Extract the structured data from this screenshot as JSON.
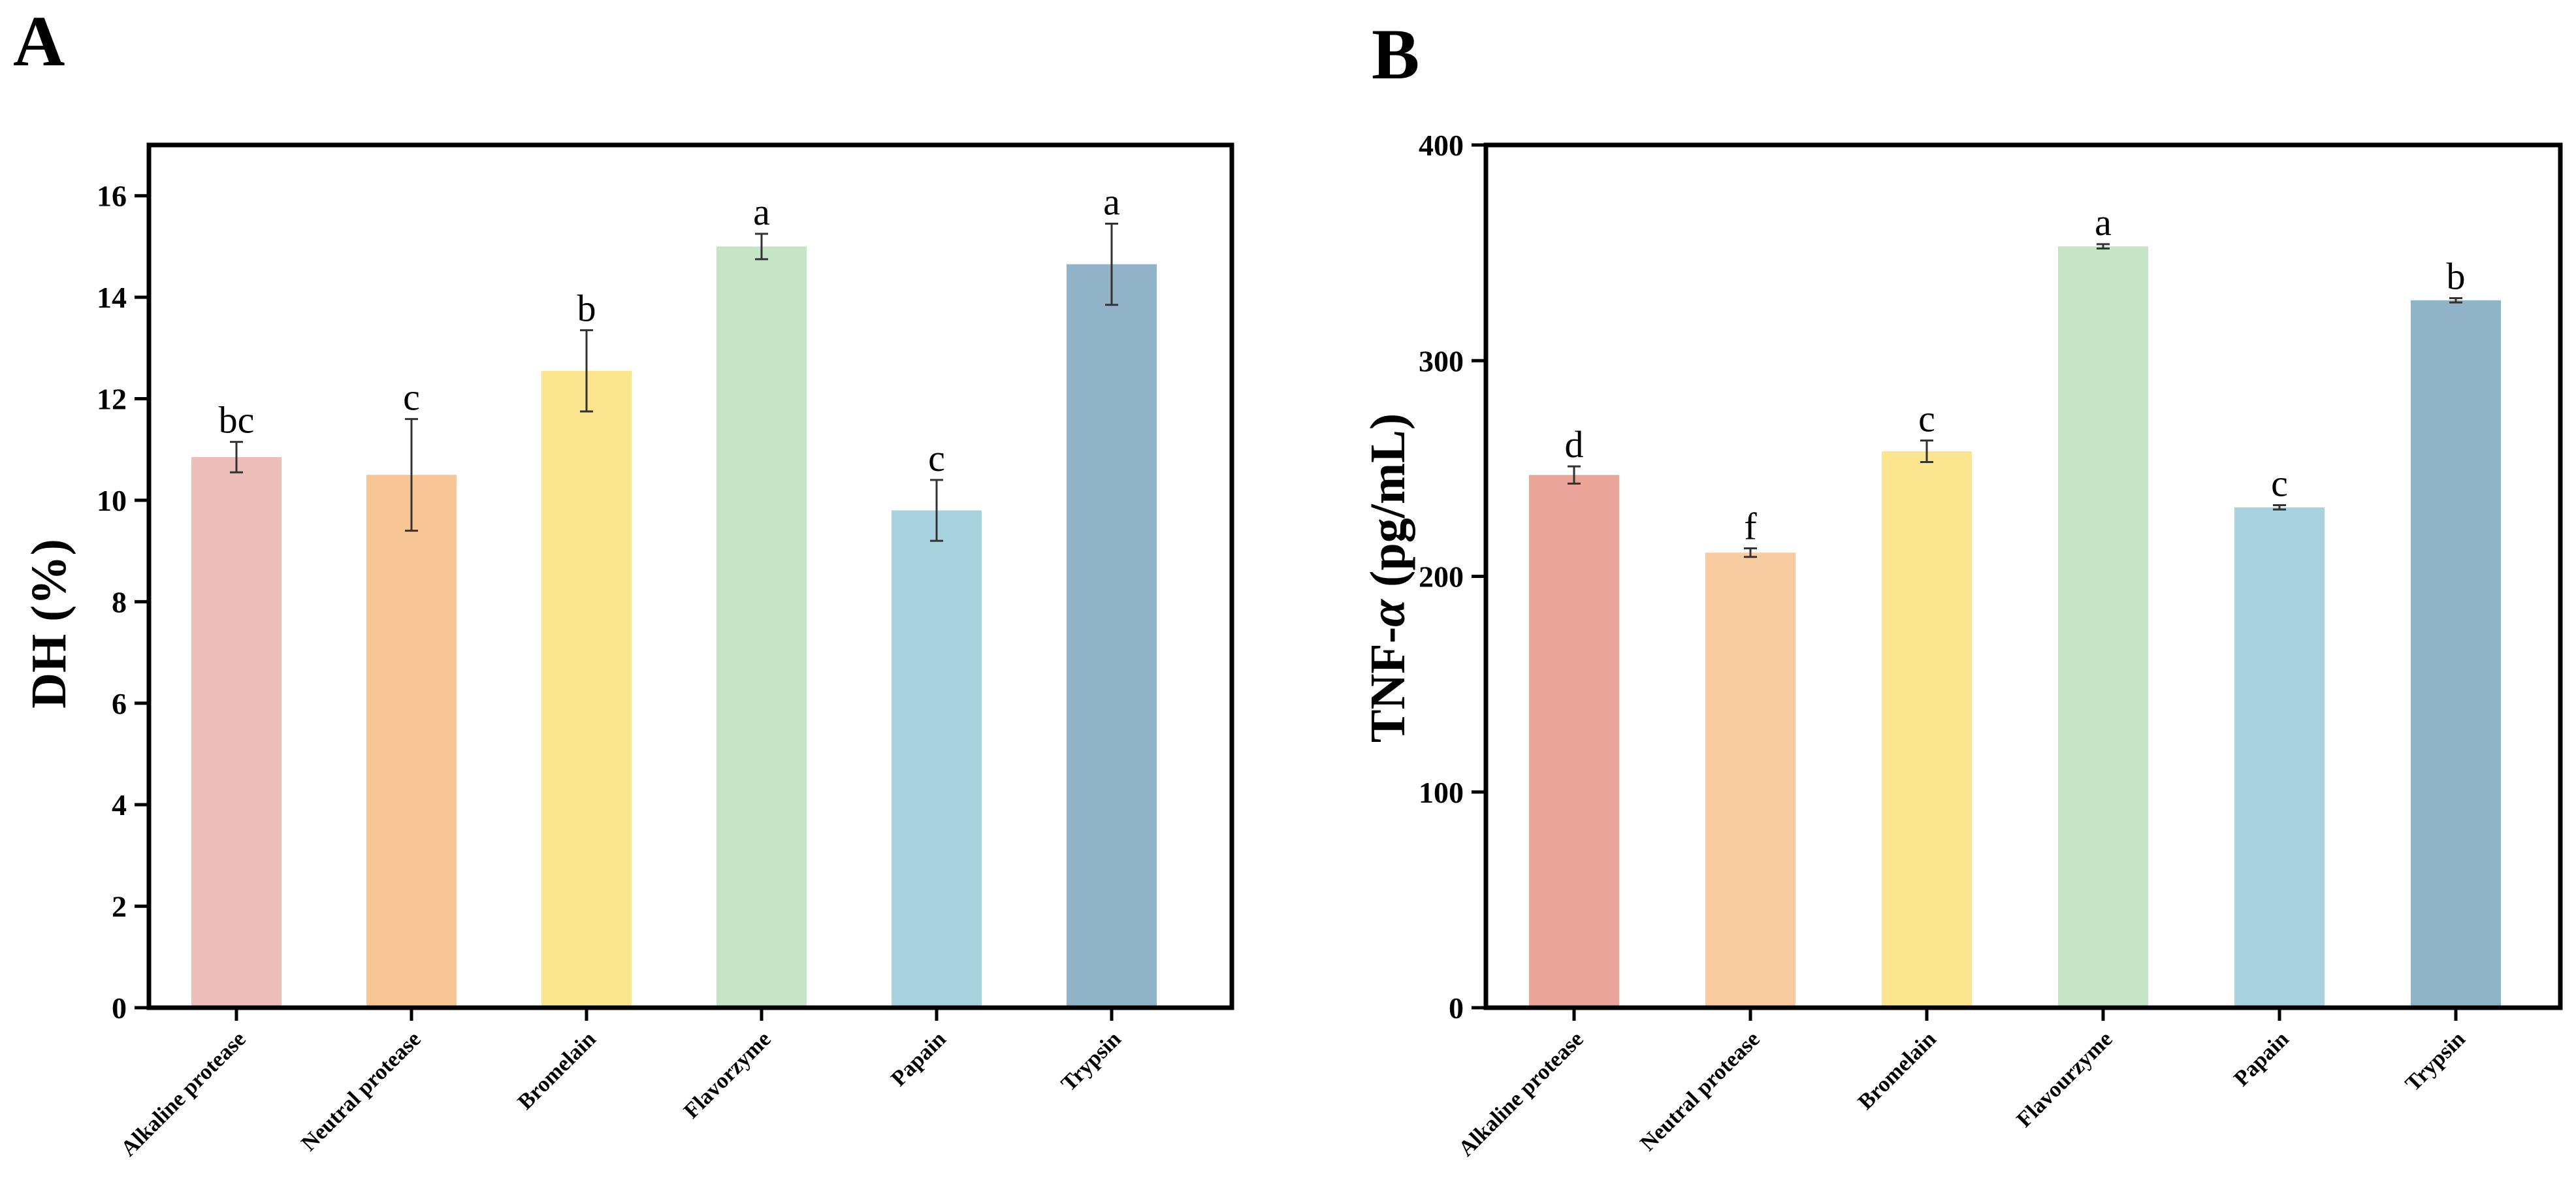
{
  "chart_data": [
    {
      "type": "bar",
      "panel": "A",
      "title": "",
      "xlabel": "",
      "ylabel": "DH (%)",
      "ylim": [
        0,
        17
      ],
      "yticks": [
        0,
        2,
        4,
        6,
        8,
        10,
        12,
        14,
        16
      ],
      "grid": false,
      "categories": [
        "Alkaline protease",
        "Neutral protease",
        "Bromelain",
        "Flavorzyme",
        "Papain",
        "Trypsin"
      ],
      "values": [
        10.85,
        10.5,
        12.55,
        15.0,
        9.8,
        14.65
      ],
      "errors": [
        0.3,
        1.1,
        0.8,
        0.25,
        0.6,
        0.8
      ],
      "significance": [
        "bc",
        "c",
        "b",
        "a",
        "c",
        "a"
      ],
      "colors": [
        "#EDBDB9",
        "#F8C594",
        "#FBE58E",
        "#C6E5C6",
        "#A9D2DF",
        "#90B3C7"
      ]
    },
    {
      "type": "bar",
      "panel": "B",
      "title": "",
      "xlabel": "",
      "ylabel": "TNF-α (pg/mL)",
      "ylabel_parts": [
        "TNF-",
        "α",
        " (pg/mL)"
      ],
      "ylim": [
        0,
        400
      ],
      "yticks": [
        0,
        100,
        200,
        300,
        400
      ],
      "grid": false,
      "categories": [
        "Alkaline protease",
        "Neutral protease",
        "Bromelain",
        "Flavourzyme",
        "Papain",
        "Trypsin"
      ],
      "values": [
        247,
        211,
        258,
        353,
        232,
        328
      ],
      "errors": [
        4,
        2,
        5,
        1,
        1,
        1
      ],
      "significance": [
        "d",
        "f",
        "c",
        "a",
        "c",
        "b"
      ],
      "colors": [
        "#EBA598",
        "#F8CBA0",
        "#FBE58E",
        "#C6E5C6",
        "#A9D2DF",
        "#90B3C7"
      ]
    }
  ]
}
